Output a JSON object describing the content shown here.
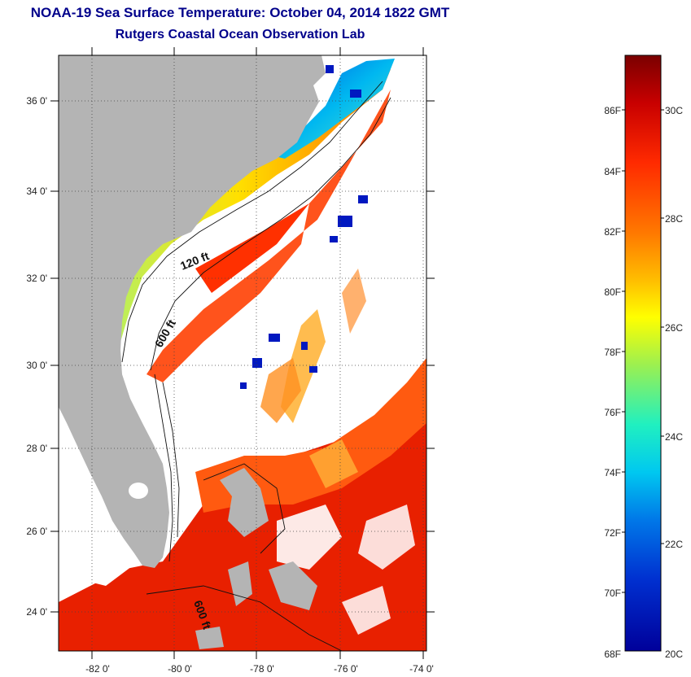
{
  "title": "NOAA-19 Sea Surface Temperature:  October 04, 2014 1822 GMT",
  "subtitle": "Rutgers Coastal Ocean Observation Lab",
  "map": {
    "lat_labels": [
      "36 0'",
      "34 0'",
      "32 0'",
      "30 0'",
      "28 0'",
      "26 0'",
      "24 0'"
    ],
    "lon_labels": [
      "-82 0'",
      "-80 0'",
      "-78 0'",
      "-76 0'",
      "-74 0'"
    ],
    "contours": [
      "120 ft",
      "600 ft",
      "600 ft"
    ]
  },
  "colorbar": {
    "f_labels": [
      "86F",
      "84F",
      "82F",
      "80F",
      "78F",
      "76F",
      "74F",
      "72F",
      "70F",
      "68F"
    ],
    "c_labels": [
      "30C",
      "28C",
      "26C",
      "24C",
      "22C",
      "20C"
    ],
    "stops": [
      "#7a0000",
      "#c80000",
      "#ff2a00",
      "#ff7a00",
      "#ffc000",
      "#ffff00",
      "#9cf050",
      "#20f0c0",
      "#00c8f0",
      "#0078e8",
      "#0030d0",
      "#00009a"
    ]
  },
  "colors": {
    "land": "#b4b4b4",
    "title": "#00008b",
    "grid": "#444444"
  }
}
